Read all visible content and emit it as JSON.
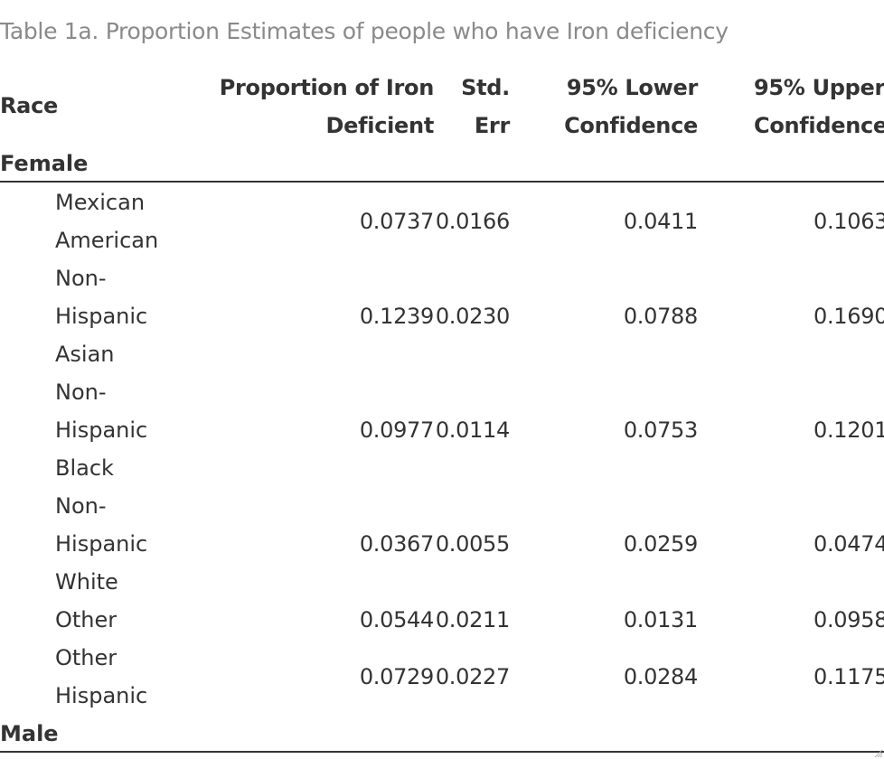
{
  "caption": "Table 1a. Proportion Estimates of people who have Iron deficiency",
  "columns": {
    "race": "Race",
    "proportion_line1": "Proportion of Iron",
    "proportion_line2": "Deficient",
    "stderr_line1": "Std.",
    "stderr_line2": "Err",
    "lower_line1": "95% Lower",
    "lower_line2": "Confidence",
    "upper_line1": "95% Upper",
    "upper_line2": "Confidence"
  },
  "groups": {
    "female": "Female",
    "male": "Male"
  },
  "rows": [
    {
      "race": "Mexican American",
      "proportion": "0.0737",
      "stderr": "0.0166",
      "lower": "0.0411",
      "upper": "0.1063"
    },
    {
      "race": "Non-Hispanic Asian",
      "proportion": "0.1239",
      "stderr": "0.0230",
      "lower": "0.0788",
      "upper": "0.1690"
    },
    {
      "race": "Non-Hispanic Black",
      "proportion": "0.0977",
      "stderr": "0.0114",
      "lower": "0.0753",
      "upper": "0.1201"
    },
    {
      "race": "Non-Hispanic White",
      "proportion": "0.0367",
      "stderr": "0.0055",
      "lower": "0.0259",
      "upper": "0.0474"
    },
    {
      "race": "Other",
      "proportion": "0.0544",
      "stderr": "0.0211",
      "lower": "0.0131",
      "upper": "0.0958"
    },
    {
      "race": "Other Hispanic",
      "proportion": "0.0729",
      "stderr": "0.0227",
      "lower": "0.0284",
      "upper": "0.1175"
    }
  ]
}
